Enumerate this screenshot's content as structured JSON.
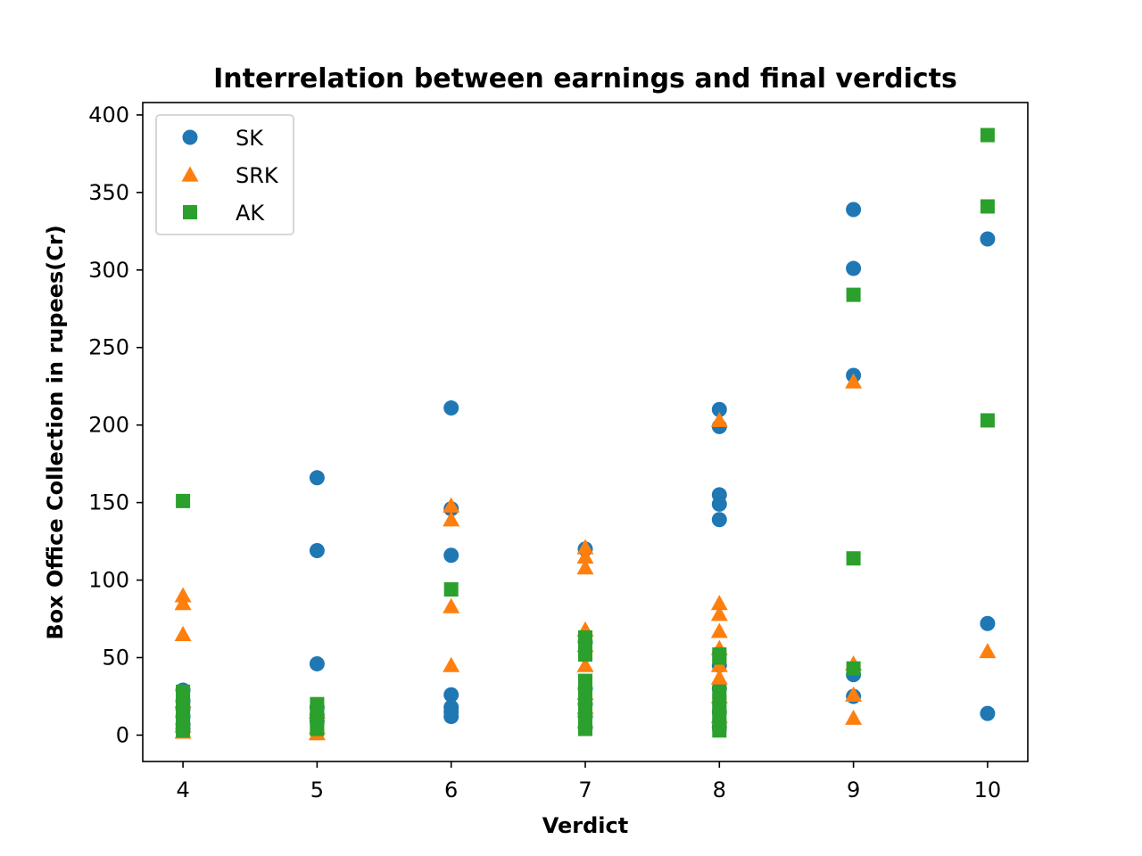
{
  "chart_data": {
    "type": "scatter",
    "title": "Interrelation between earnings and final verdicts",
    "xlabel": "Verdict",
    "ylabel": "Box Office Collection in rupees(Cr)",
    "xlim": [
      3.7,
      10.3
    ],
    "ylim": [
      -17,
      408
    ],
    "xticks": [
      4,
      5,
      6,
      7,
      8,
      9,
      10
    ],
    "yticks": [
      0,
      50,
      100,
      150,
      200,
      250,
      300,
      350,
      400
    ],
    "grid": false,
    "legend_position": "top-left",
    "series": [
      {
        "name": "SK",
        "marker": "circle",
        "color": "#1f77b4",
        "points": [
          [
            4,
            29
          ],
          [
            4,
            22
          ],
          [
            4,
            17
          ],
          [
            4,
            12
          ],
          [
            4,
            7
          ],
          [
            4,
            4
          ],
          [
            5,
            166
          ],
          [
            5,
            119
          ],
          [
            5,
            46
          ],
          [
            5,
            18
          ],
          [
            5,
            13
          ],
          [
            5,
            9
          ],
          [
            6,
            211
          ],
          [
            6,
            146
          ],
          [
            6,
            116
          ],
          [
            6,
            26
          ],
          [
            6,
            18
          ],
          [
            6,
            15
          ],
          [
            6,
            12
          ],
          [
            7,
            120
          ],
          [
            7,
            60
          ],
          [
            7,
            30
          ],
          [
            7,
            20
          ],
          [
            7,
            12
          ],
          [
            7,
            5
          ],
          [
            8,
            210
          ],
          [
            8,
            199
          ],
          [
            8,
            155
          ],
          [
            8,
            149
          ],
          [
            8,
            139
          ],
          [
            8,
            45
          ],
          [
            8,
            30
          ],
          [
            8,
            15
          ],
          [
            8,
            5
          ],
          [
            9,
            339
          ],
          [
            9,
            301
          ],
          [
            9,
            232
          ],
          [
            9,
            39
          ],
          [
            9,
            25
          ],
          [
            10,
            320
          ],
          [
            10,
            72
          ],
          [
            10,
            14
          ]
        ]
      },
      {
        "name": "SRK",
        "marker": "triangle",
        "color": "#ff7f0e",
        "points": [
          [
            4,
            90
          ],
          [
            4,
            85
          ],
          [
            4,
            65
          ],
          [
            4,
            22
          ],
          [
            4,
            6
          ],
          [
            4,
            2
          ],
          [
            5,
            15
          ],
          [
            5,
            5
          ],
          [
            5,
            1
          ],
          [
            6,
            148
          ],
          [
            6,
            139
          ],
          [
            6,
            83
          ],
          [
            6,
            45
          ],
          [
            7,
            121
          ],
          [
            7,
            115
          ],
          [
            7,
            108
          ],
          [
            7,
            68
          ],
          [
            7,
            58
          ],
          [
            7,
            45
          ],
          [
            7,
            27
          ],
          [
            7,
            18
          ],
          [
            8,
            203
          ],
          [
            8,
            85
          ],
          [
            8,
            78
          ],
          [
            8,
            67
          ],
          [
            8,
            56
          ],
          [
            8,
            45
          ],
          [
            8,
            37
          ],
          [
            8,
            25
          ],
          [
            8,
            12
          ],
          [
            9,
            228
          ],
          [
            9,
            46
          ],
          [
            9,
            26
          ],
          [
            9,
            11
          ],
          [
            10,
            54
          ]
        ]
      },
      {
        "name": "AK",
        "marker": "square",
        "color": "#2ca02c",
        "points": [
          [
            4,
            151
          ],
          [
            4,
            28
          ],
          [
            4,
            22
          ],
          [
            4,
            16
          ],
          [
            4,
            12
          ],
          [
            4,
            7
          ],
          [
            4,
            3
          ],
          [
            5,
            20
          ],
          [
            5,
            15
          ],
          [
            5,
            11
          ],
          [
            5,
            7
          ],
          [
            5,
            4
          ],
          [
            6,
            94
          ],
          [
            7,
            63
          ],
          [
            7,
            57
          ],
          [
            7,
            52
          ],
          [
            7,
            35
          ],
          [
            7,
            31
          ],
          [
            7,
            22
          ],
          [
            7,
            15
          ],
          [
            7,
            8
          ],
          [
            7,
            4
          ],
          [
            8,
            52
          ],
          [
            8,
            50
          ],
          [
            8,
            28
          ],
          [
            8,
            22
          ],
          [
            8,
            17
          ],
          [
            8,
            12
          ],
          [
            8,
            7
          ],
          [
            8,
            3
          ],
          [
            9,
            114
          ],
          [
            9,
            43
          ],
          [
            9,
            284
          ],
          [
            10,
            387
          ],
          [
            10,
            341
          ],
          [
            10,
            203
          ]
        ]
      }
    ]
  }
}
